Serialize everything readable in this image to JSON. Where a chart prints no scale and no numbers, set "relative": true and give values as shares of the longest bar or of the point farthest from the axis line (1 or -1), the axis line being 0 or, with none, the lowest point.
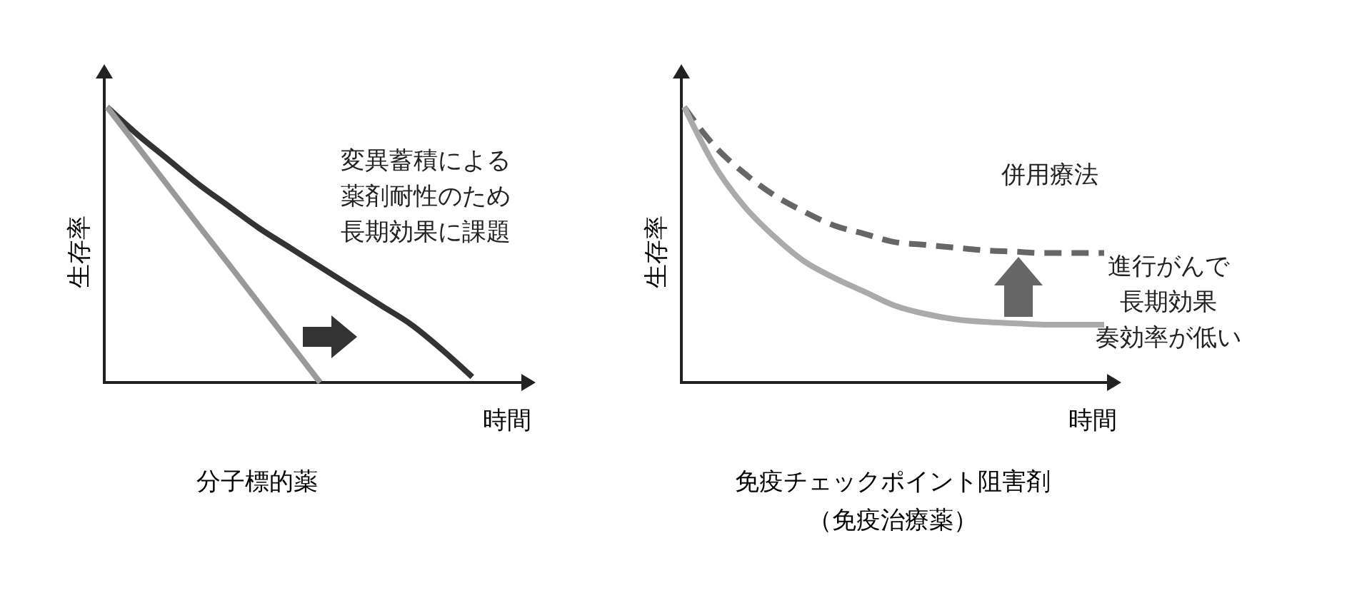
{
  "chart_data": [
    {
      "type": "line",
      "relative": true,
      "title": "分子標的薬",
      "xlabel": "時間",
      "ylabel": "生存率",
      "annotations": [
        "変異蓄積による",
        "薬剤耐性のため",
        "長期効果に課題"
      ],
      "categories": [
        null,
        null,
        null,
        null,
        null,
        null,
        null,
        null,
        null,
        null,
        null,
        null,
        null,
        null,
        null
      ],
      "series": [
        {
          "color": "#333333",
          "values": [
            1,
            0.9,
            0.81,
            0.72,
            0.64,
            0.56,
            0.49,
            0.42,
            0.35,
            0.28,
            0.21,
            0.12,
            0.02,
            null,
            null
          ]
        },
        {
          "color": "#999999",
          "values": [
            1,
            0.857,
            0.714,
            0.571,
            0.429,
            0.286,
            0.143,
            0,
            null,
            null,
            null,
            null,
            null,
            null,
            null
          ]
        }
      ]
    },
    {
      "type": "line",
      "relative": true,
      "title": "免疫チェックポイント阻害剤",
      "subtitle": "（免疫治療薬）",
      "xlabel": "時間",
      "ylabel": "生存率",
      "annotations": [
        "併用療法",
        "進行がんで",
        "長期効果",
        "奏効率が低い"
      ],
      "categories": [
        null,
        null,
        null,
        null,
        null,
        null,
        null,
        null,
        null,
        null,
        null,
        null,
        null,
        null,
        null,
        null
      ],
      "series": [
        {
          "color": "#666666",
          "line_style": "dashed",
          "values": [
            1,
            0.86,
            0.76,
            0.68,
            0.62,
            0.57,
            0.54,
            0.51,
            0.5,
            0.49,
            0.48,
            0.475,
            0.47,
            0.47,
            0.47,
            null
          ]
        },
        {
          "color": "#aaaaaa",
          "values": [
            1,
            0.79,
            0.64,
            0.53,
            0.44,
            0.38,
            0.33,
            0.28,
            0.25,
            0.23,
            0.22,
            0.215,
            0.21,
            0.21,
            0.21,
            null
          ]
        }
      ]
    }
  ]
}
